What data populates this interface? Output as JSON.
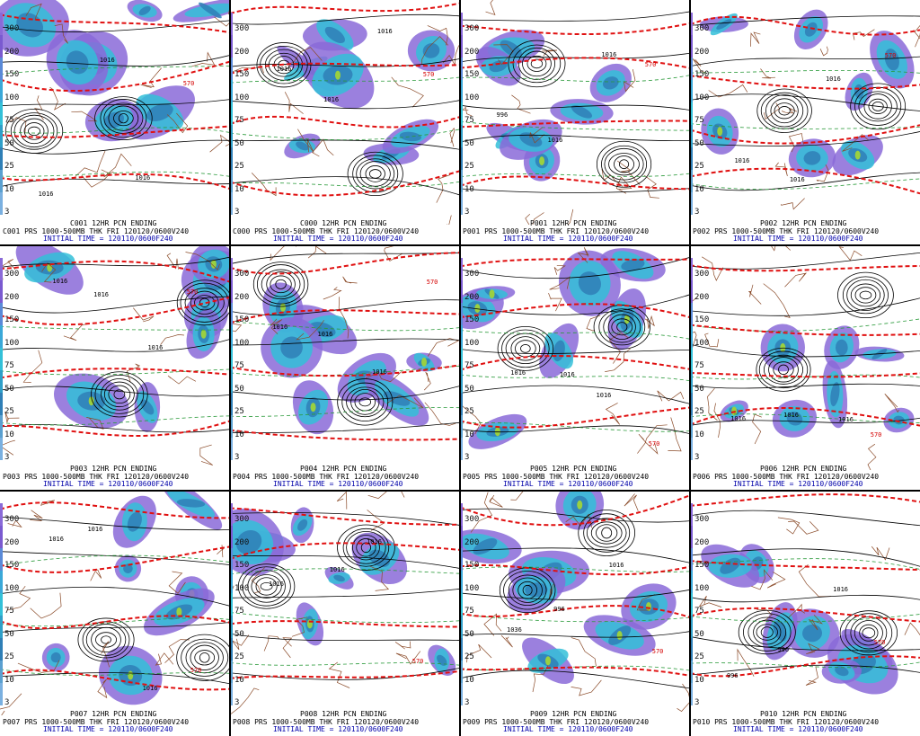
{
  "colors": {
    "precip_light": "#8a6ad8",
    "precip_mid": "#33c0d8",
    "precip_heavy": "#2f7fb6",
    "precip_max": "#9ad040",
    "thickness": "#e01010",
    "pressure": "#000000",
    "terrain": "#8a4a28",
    "pw_dashed": "#2a9a3a"
  },
  "scale_ticks": [
    "300",
    "200",
    "150",
    "100",
    "75",
    "50",
    "25",
    "10",
    "3"
  ],
  "panels": [
    {
      "id": "C001",
      "top_caption": "C001 12HR PCN ENDING",
      "line1": "C001 PRS 1000-500MB THK FRI 120120/0600V240",
      "line2": "INITIAL TIME = 120110/0600F240",
      "labels": [
        "1016",
        "1016",
        "1016",
        "570"
      ]
    },
    {
      "id": "C000",
      "top_caption": "C000 12HR PCN ENDING",
      "line1": "C000 PRS 1000-500MB THK FRI 120120/0600V240",
      "line2": "INITIAL TIME = 120110/0600F240",
      "labels": [
        "1016",
        "1016",
        "1016",
        "570"
      ]
    },
    {
      "id": "P001",
      "top_caption": "P001 12HR PCN ENDING",
      "line1": "P001 PRS 1000-500MB THK FRI 120120/0600V240",
      "line2": "INITIAL TIME = 120110/0600F240",
      "labels": [
        "996",
        "1016",
        "1016",
        "570"
      ]
    },
    {
      "id": "P002",
      "top_caption": "P002 12HR PCN ENDING",
      "line1": "P002 PRS 1000-500MB THK FRI 120120/0600V240",
      "line2": "INITIAL TIME = 120110/0600F240",
      "labels": [
        "1016",
        "1016",
        "1016",
        "570"
      ]
    },
    {
      "id": "P003",
      "top_caption": "P003 12HR PCN ENDING",
      "line1": "P003 PRS 1000-500MB THK FRI 120120/0600V240",
      "line2": "INITIAL TIME = 120110/0600F240",
      "labels": [
        "1016",
        "1016",
        "1016",
        "570"
      ]
    },
    {
      "id": "P004",
      "top_caption": "P004 12HR PCN ENDING",
      "line1": "P004 PRS 1000-500MB THK FRI 120120/0600V240",
      "line2": "INITIAL TIME = 120110/0600F240",
      "labels": [
        "1016",
        "1016",
        "1016",
        "570"
      ]
    },
    {
      "id": "P005",
      "top_caption": "P005 12HR PCN ENDING",
      "line1": "P005 PRS 1000-500MB THK FRI 120120/0600V240",
      "line2": "INITIAL TIME = 120110/0600F240",
      "labels": [
        "1016",
        "1016",
        "1016",
        "570"
      ]
    },
    {
      "id": "P006",
      "top_caption": "P006 12HR PCN ENDING",
      "line1": "P006 PRS 1000-500MB THK FRI 120120/0600V240",
      "line2": "INITIAL TIME = 120110/0600F240",
      "labels": [
        "1016",
        "1016",
        "1016",
        "570"
      ]
    },
    {
      "id": "P007",
      "top_caption": "P007 12HR PCN ENDING",
      "line1": "P007 PRS 1000-500MB THK FRI 120120/0600V240",
      "line2": "INITIAL TIME = 120110/0600F240",
      "labels": [
        "1016",
        "1016",
        "1016",
        "570"
      ]
    },
    {
      "id": "P008",
      "top_caption": "P008 12HR PCN ENDING",
      "line1": "P008 PRS 1000-500MB THK FRI 120120/0600V240",
      "line2": "INITIAL TIME = 120110/0600F240",
      "labels": [
        "1016",
        "1016",
        "1016",
        "570"
      ]
    },
    {
      "id": "P009",
      "top_caption": "P009 12HR PCN ENDING",
      "line1": "P009 PRS 1000-500MB THK FRI 120120/0600V240",
      "line2": "INITIAL TIME = 120110/0600F240",
      "labels": [
        "1036",
        "996",
        "1016",
        "570"
      ]
    },
    {
      "id": "P010",
      "top_caption": "P010 12HR PCN ENDING",
      "line1": "P010 PRS 1000-500MB THK FRI 120120/0600V240",
      "line2": "INITIAL TIME = 120110/0600F240",
      "labels": [
        "996",
        "996",
        "1016",
        "570"
      ]
    }
  ]
}
